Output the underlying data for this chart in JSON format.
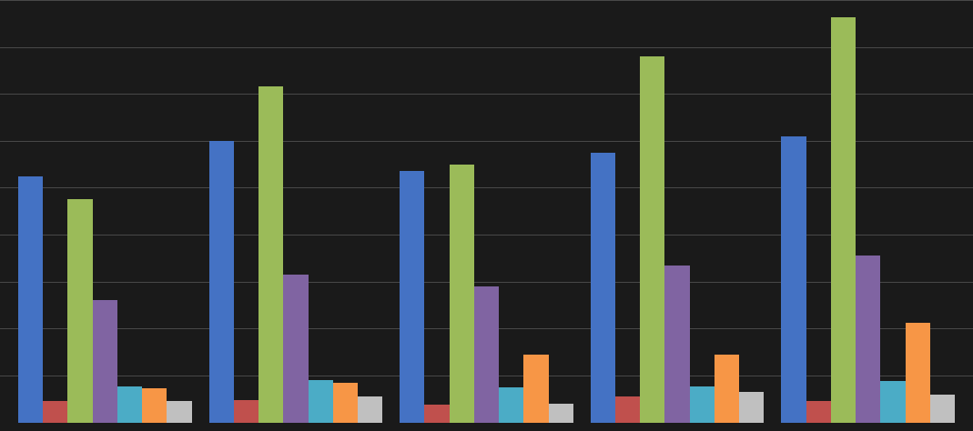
{
  "background_color": "#1a1a1a",
  "grid_color": "#4a4a4a",
  "series_colors": [
    "#4472C4",
    "#C0504D",
    "#9BBB59",
    "#8064A2",
    "#4BACC6",
    "#F79646",
    "#C0C0C0"
  ],
  "bar_width": 0.13,
  "data": [
    [
      1050,
      90,
      950,
      520,
      155,
      145,
      90
    ],
    [
      1200,
      95,
      1430,
      630,
      180,
      170,
      110
    ],
    [
      1070,
      75,
      1100,
      580,
      150,
      290,
      80
    ],
    [
      1150,
      110,
      1560,
      670,
      155,
      290,
      130
    ],
    [
      1220,
      90,
      1726,
      710,
      175,
      425,
      120
    ]
  ],
  "ylim": [
    0,
    1800
  ],
  "n_groups": 5
}
